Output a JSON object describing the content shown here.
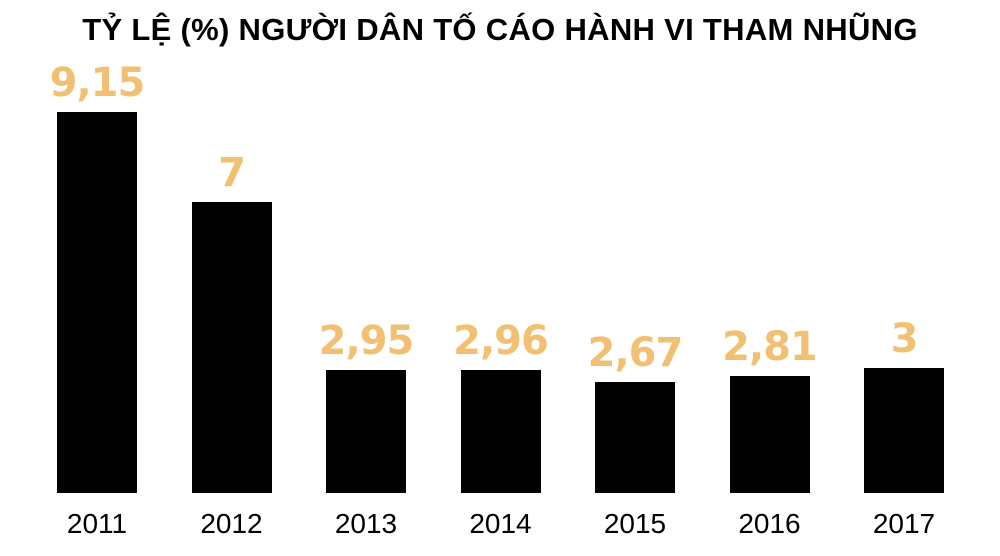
{
  "chart_data": {
    "type": "bar",
    "title": "TỶ LỆ (%) NGƯỜI DÂN TỐ CÁO HÀNH VI THAM NHŨNG",
    "categories": [
      "2011",
      "2012",
      "2013",
      "2014",
      "2015",
      "2016",
      "2017"
    ],
    "values": [
      9.15,
      7,
      2.95,
      2.96,
      2.67,
      2.81,
      3
    ],
    "value_labels": [
      "9,15",
      "7",
      "2,95",
      "2,96",
      "2,67",
      "2,81",
      "3"
    ],
    "xlabel": "",
    "ylabel": "",
    "grid": false,
    "legend": null,
    "colors": {
      "bar": "#000000",
      "value_label": "#f2c072"
    }
  }
}
